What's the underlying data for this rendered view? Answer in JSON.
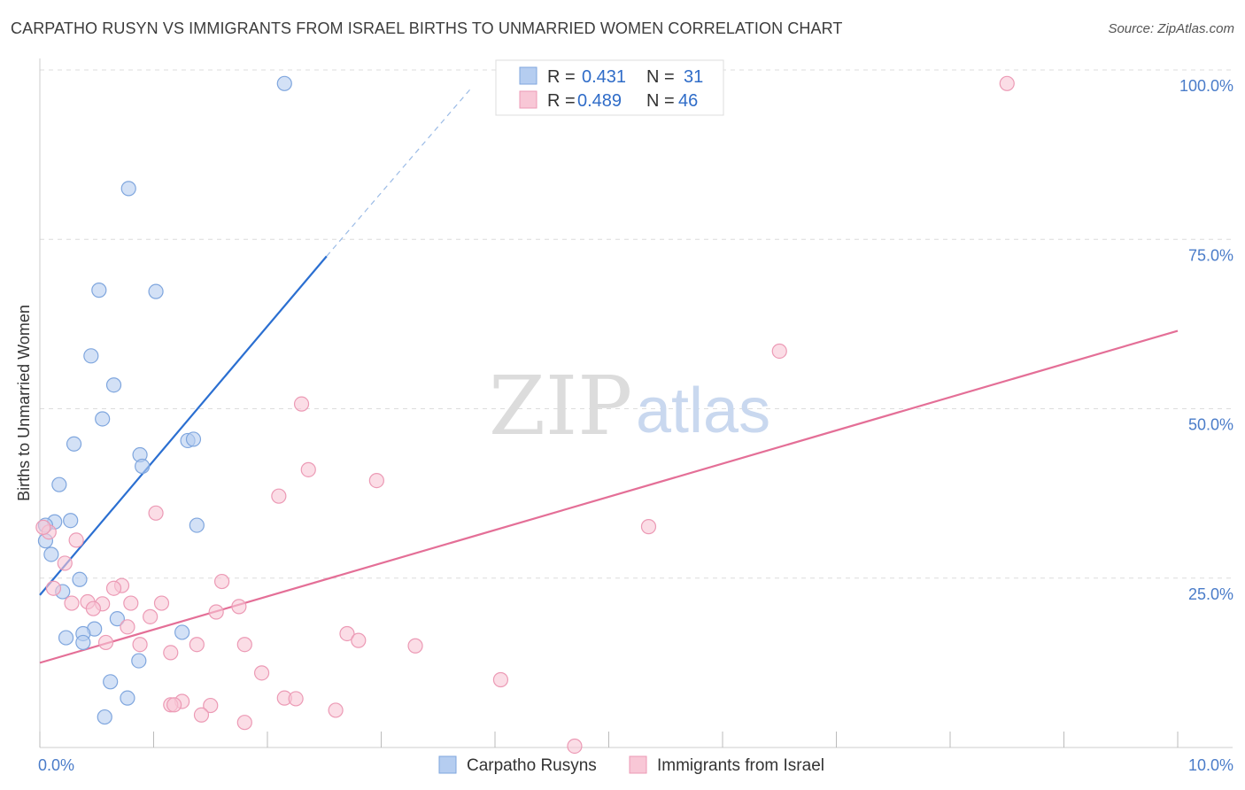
{
  "title": "CARPATHO RUSYN VS IMMIGRANTS FROM ISRAEL BIRTHS TO UNMARRIED WOMEN CORRELATION CHART",
  "source": "Source: ZipAtlas.com",
  "watermark": {
    "zip": "ZIP",
    "atlas": "atlas"
  },
  "colors": {
    "blue_fill": "#b5cdf0",
    "blue_stroke": "#7fa6de",
    "blue_line": "#2b6fd1",
    "pink_fill": "#f8c7d6",
    "pink_stroke": "#ec9ab5",
    "pink_line": "#e46f97",
    "grid": "#dcdcdc",
    "tick_text": "#4a7cc9"
  },
  "legend": {
    "r_label": "R =",
    "n_label": "N =",
    "rows": [
      {
        "series": "Carpatho Rusyns",
        "r": "0.431",
        "n": "31"
      },
      {
        "series": "Immigrants from Israel",
        "r": "0.489",
        "n": "46"
      }
    ]
  },
  "chart_data": {
    "type": "scatter",
    "title": "CARPATHO RUSYN VS IMMIGRANTS FROM ISRAEL BIRTHS TO UNMARRIED WOMEN CORRELATION CHART",
    "xlabel": "",
    "ylabel": "Births to Unmarried Women",
    "xlim": [
      0,
      10
    ],
    "ylim": [
      0,
      100
    ],
    "x_tick_labels": [
      {
        "value": 0,
        "label": "0.0%"
      },
      {
        "value": 10,
        "label": "10.0%"
      }
    ],
    "y_tick_labels": [
      {
        "value": 25,
        "label": "25.0%"
      },
      {
        "value": 50,
        "label": "50.0%"
      },
      {
        "value": 75,
        "label": "75.0%"
      },
      {
        "value": 100,
        "label": "100.0%"
      }
    ],
    "series": [
      {
        "name": "Carpatho Rusyns",
        "color": "blue",
        "points": [
          [
            2.15,
            98
          ],
          [
            0.78,
            82.5
          ],
          [
            0.52,
            67.5
          ],
          [
            1.02,
            67.3
          ],
          [
            0.45,
            57.8
          ],
          [
            0.65,
            53.5
          ],
          [
            0.55,
            48.5
          ],
          [
            0.3,
            44.8
          ],
          [
            0.88,
            43.2
          ],
          [
            1.3,
            45.3
          ],
          [
            1.35,
            45.5
          ],
          [
            0.9,
            41.5
          ],
          [
            0.17,
            38.8
          ],
          [
            0.27,
            33.5
          ],
          [
            0.13,
            33.3
          ],
          [
            0.05,
            32.8
          ],
          [
            1.38,
            32.8
          ],
          [
            0.05,
            30.5
          ],
          [
            0.1,
            28.5
          ],
          [
            0.35,
            24.8
          ],
          [
            0.2,
            23
          ],
          [
            0.68,
            19
          ],
          [
            0.48,
            17.5
          ],
          [
            1.25,
            17
          ],
          [
            0.38,
            16.8
          ],
          [
            0.23,
            16.2
          ],
          [
            0.38,
            15.5
          ],
          [
            0.87,
            12.8
          ],
          [
            0.62,
            9.7
          ],
          [
            0.77,
            7.3
          ],
          [
            0.57,
            4.5
          ]
        ],
        "trend": {
          "x": [
            0,
            2.52
          ],
          "y": [
            22.5,
            72.5
          ],
          "dashed_to": {
            "x": 3.8,
            "y": 97.5
          }
        }
      },
      {
        "name": "Immigrants from Israel",
        "color": "pink",
        "points": [
          [
            8.5,
            98
          ],
          [
            6.5,
            58.5
          ],
          [
            2.3,
            50.7
          ],
          [
            2.36,
            41
          ],
          [
            2.96,
            39.4
          ],
          [
            2.1,
            37.1
          ],
          [
            1.02,
            34.6
          ],
          [
            5.35,
            32.6
          ],
          [
            0.08,
            31.8
          ],
          [
            0.32,
            30.6
          ],
          [
            0.22,
            27.2
          ],
          [
            1.6,
            24.5
          ],
          [
            0.72,
            23.9
          ],
          [
            0.65,
            23.5
          ],
          [
            0.12,
            23.5
          ],
          [
            0.42,
            21.5
          ],
          [
            0.55,
            21.2
          ],
          [
            1.07,
            21.3
          ],
          [
            0.8,
            21.3
          ],
          [
            0.28,
            21.3
          ],
          [
            1.75,
            20.8
          ],
          [
            0.47,
            20.5
          ],
          [
            1.55,
            20
          ],
          [
            0.97,
            19.3
          ],
          [
            0.77,
            17.8
          ],
          [
            2.7,
            16.8
          ],
          [
            2.8,
            15.8
          ],
          [
            0.58,
            15.5
          ],
          [
            0.88,
            15.2
          ],
          [
            1.38,
            15.2
          ],
          [
            1.8,
            15.2
          ],
          [
            3.3,
            15
          ],
          [
            1.15,
            14
          ],
          [
            1.95,
            11
          ],
          [
            4.05,
            10
          ],
          [
            2.15,
            7.3
          ],
          [
            2.25,
            7.2
          ],
          [
            1.25,
            6.8
          ],
          [
            1.15,
            6.3
          ],
          [
            1.18,
            6.3
          ],
          [
            1.5,
            6.2
          ],
          [
            2.6,
            5.5
          ],
          [
            1.42,
            4.8
          ],
          [
            1.8,
            3.7
          ],
          [
            4.7,
            0.2
          ],
          [
            0.03,
            32.5
          ]
        ],
        "trend": {
          "x": [
            0,
            10
          ],
          "y": [
            12.5,
            61.5
          ]
        }
      }
    ]
  }
}
